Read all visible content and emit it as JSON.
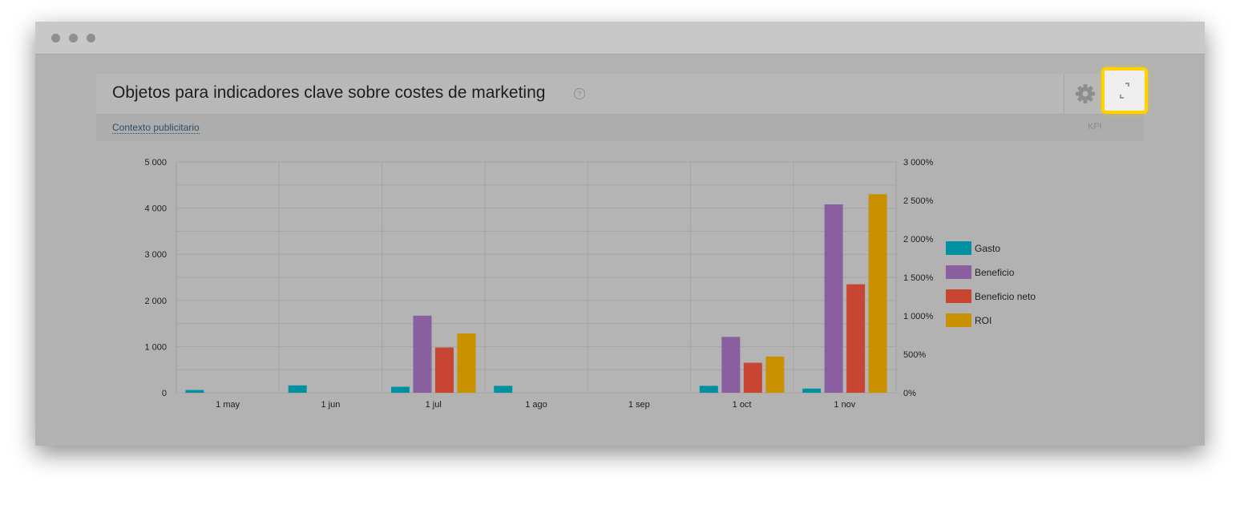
{
  "panel": {
    "title": "Objetos para indicadores clave sobre costes de marketing",
    "help_icon": "?",
    "context_link": "Contexto publicitario",
    "kpi_label": "KPI"
  },
  "colors": {
    "gasto": "#0090a0",
    "beneficio": "#8a5fa0",
    "beneficio_neto": "#c84631",
    "roi": "#c99000",
    "highlight": "#ffd200"
  },
  "icons": {
    "settings": "gear-icon",
    "expand": "expand-icon",
    "help": "help-icon"
  },
  "chart_data": {
    "type": "bar",
    "categories": [
      "1 may",
      "1 jun",
      "1 jul",
      "1 ago",
      "1 sep",
      "1 oct",
      "1 nov"
    ],
    "y_left_ticks": [
      "0",
      "1 000",
      "2 000",
      "3 000",
      "4 000",
      "5 000"
    ],
    "y_right_ticks": [
      "0%",
      "500%",
      "1 000%",
      "1 500%",
      "2 000%",
      "2 500%",
      "3 000%"
    ],
    "ylim_left": [
      0,
      5000
    ],
    "ylim_right": [
      0,
      3000
    ],
    "grid": true,
    "legend_position": "right",
    "series": [
      {
        "name": "Gasto",
        "axis": "left",
        "values": [
          60,
          160,
          130,
          150,
          0,
          150,
          90
        ]
      },
      {
        "name": "Beneficio",
        "axis": "left",
        "values": [
          0,
          0,
          1670,
          0,
          0,
          1210,
          4080
        ]
      },
      {
        "name": "Beneficio neto",
        "axis": "left",
        "values": [
          0,
          0,
          980,
          0,
          0,
          650,
          2350
        ]
      },
      {
        "name": "ROI",
        "axis": "right",
        "values": [
          0,
          0,
          770,
          0,
          0,
          470,
          2580
        ]
      }
    ]
  }
}
